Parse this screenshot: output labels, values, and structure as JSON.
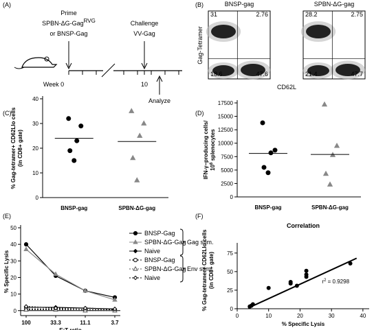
{
  "panel_labels": [
    "(A)",
    "(B)",
    "(C)",
    "(D)",
    "(E)",
    "(F)"
  ],
  "diagram": {
    "prime": "Prime",
    "prime_vaccine": "SPBN-ΔG-Gag",
    "prime_vaccine_sup": "RVG",
    "prime_alt": "or BNSP-Gag",
    "challenge": "Challenge",
    "challenge_virus": "VV-Gag",
    "week0": "Week 0",
    "week10": "10",
    "analyze": "Analyze"
  },
  "flow": {
    "ylabel": "Gag-Tetramer",
    "xlabel": "CD62L",
    "plots": [
      {
        "title": "BNSP-gag",
        "quadrants": [
          "31",
          "2.76",
          "18.6",
          "47.6"
        ]
      },
      {
        "title": "SPBN-ΔG-gag",
        "quadrants": [
          "28.2",
          "2.75",
          "21.4",
          "47.7"
        ]
      }
    ]
  },
  "chart_data": [
    {
      "type": "strip",
      "ylabel": "% Gag-tetramer+ CD62Llo cells",
      "ylabel2": "(in CD8+ gate)",
      "categories": [
        "BNSP-gag",
        "SPBN-ΔG-gag"
      ],
      "colors": [
        "#000000",
        "#888888"
      ],
      "markers": [
        "circle",
        "triangle"
      ],
      "values": [
        [
          32,
          29,
          23,
          19,
          15
        ],
        [
          35,
          30,
          25,
          16,
          7
        ]
      ],
      "means": [
        24,
        22.7
      ],
      "ylim": [
        0,
        40
      ],
      "yticks": [
        0,
        10,
        20,
        30,
        40
      ]
    },
    {
      "type": "strip",
      "ylabel": "IFN-γ–producing cells/",
      "ylabel_base": "10",
      "ylabel_sup": "6",
      "ylabel_rest": " splenocytes",
      "categories": [
        "BNSP-gag",
        "SPBN-ΔG-gag"
      ],
      "colors": [
        "#000000",
        "#888888"
      ],
      "markers": [
        "circle",
        "triangle"
      ],
      "values": [
        [
          13800,
          8700,
          8200,
          5500,
          4500
        ],
        [
          17200,
          9500,
          7800,
          4300,
          2300
        ]
      ],
      "means": [
        8100,
        7900
      ],
      "ylim": [
        0,
        17500
      ],
      "yticks": [
        0,
        2500,
        5000,
        7500,
        10000,
        12500,
        15000,
        17500
      ]
    },
    {
      "type": "line",
      "ylabel": "% Specific Lysis",
      "xlabel": "E:T ratio",
      "categories": [
        "100",
        "33.3",
        "11.1",
        "3.7"
      ],
      "series": [
        {
          "name": "BNSP-Gag",
          "color": "#000000",
          "marker": "circle",
          "dashed": false,
          "values": [
            40,
            21,
            12,
            8
          ]
        },
        {
          "name": "SPBN-ΔG-Gag",
          "color": "#888888",
          "marker": "triangle",
          "dashed": false,
          "values": [
            37,
            22,
            12,
            6.5
          ]
        },
        {
          "name": "Naive",
          "color": "#000000",
          "marker": "diamond",
          "dashed": false,
          "values": [
            2,
            2,
            1.5,
            1
          ]
        },
        {
          "name": "BNSP-Gag",
          "color": "#000000",
          "marker": "circle-open",
          "dashed": true,
          "values": [
            1,
            1,
            0.5,
            0.5
          ]
        },
        {
          "name": "SPBN-ΔG-Gag",
          "color": "#555555",
          "marker": "triangle-open",
          "dashed": true,
          "values": [
            0.5,
            0.5,
            0,
            0
          ]
        },
        {
          "name": "Naive",
          "color": "#000000",
          "marker": "diamond-open",
          "dashed": true,
          "values": [
            2.5,
            1.5,
            1.5,
            1
          ]
        }
      ],
      "legend_groups": [
        "Gag stim.",
        "Env stim."
      ],
      "ylim": [
        -3,
        50
      ],
      "yticks": [
        0,
        10,
        20,
        30,
        40,
        50
      ]
    },
    {
      "type": "scatter",
      "title": "Correlation",
      "ylabel": "% Gag-tetramer+ CD62Llo cells",
      "ylabel2": "(in CD8+ gate)",
      "xlabel": "% Specific Lysis",
      "annotation": "r",
      "annotation_sup": "2",
      "annotation_rest": " = 0.9298",
      "color": "#000000",
      "x": [
        4,
        4.5,
        5,
        10,
        17,
        17,
        19,
        22,
        22,
        22,
        36
      ],
      "y": [
        3,
        4,
        6,
        28,
        36,
        34,
        31,
        51,
        46,
        43,
        61
      ],
      "trend_x": [
        3.5,
        38
      ],
      "trend_y": [
        1,
        68
      ],
      "xlim": [
        0,
        42
      ],
      "xticks": [
        0,
        10,
        20,
        30,
        40
      ],
      "ylim": [
        0,
        85
      ],
      "yticks": [
        0,
        25,
        50,
        75
      ]
    }
  ]
}
